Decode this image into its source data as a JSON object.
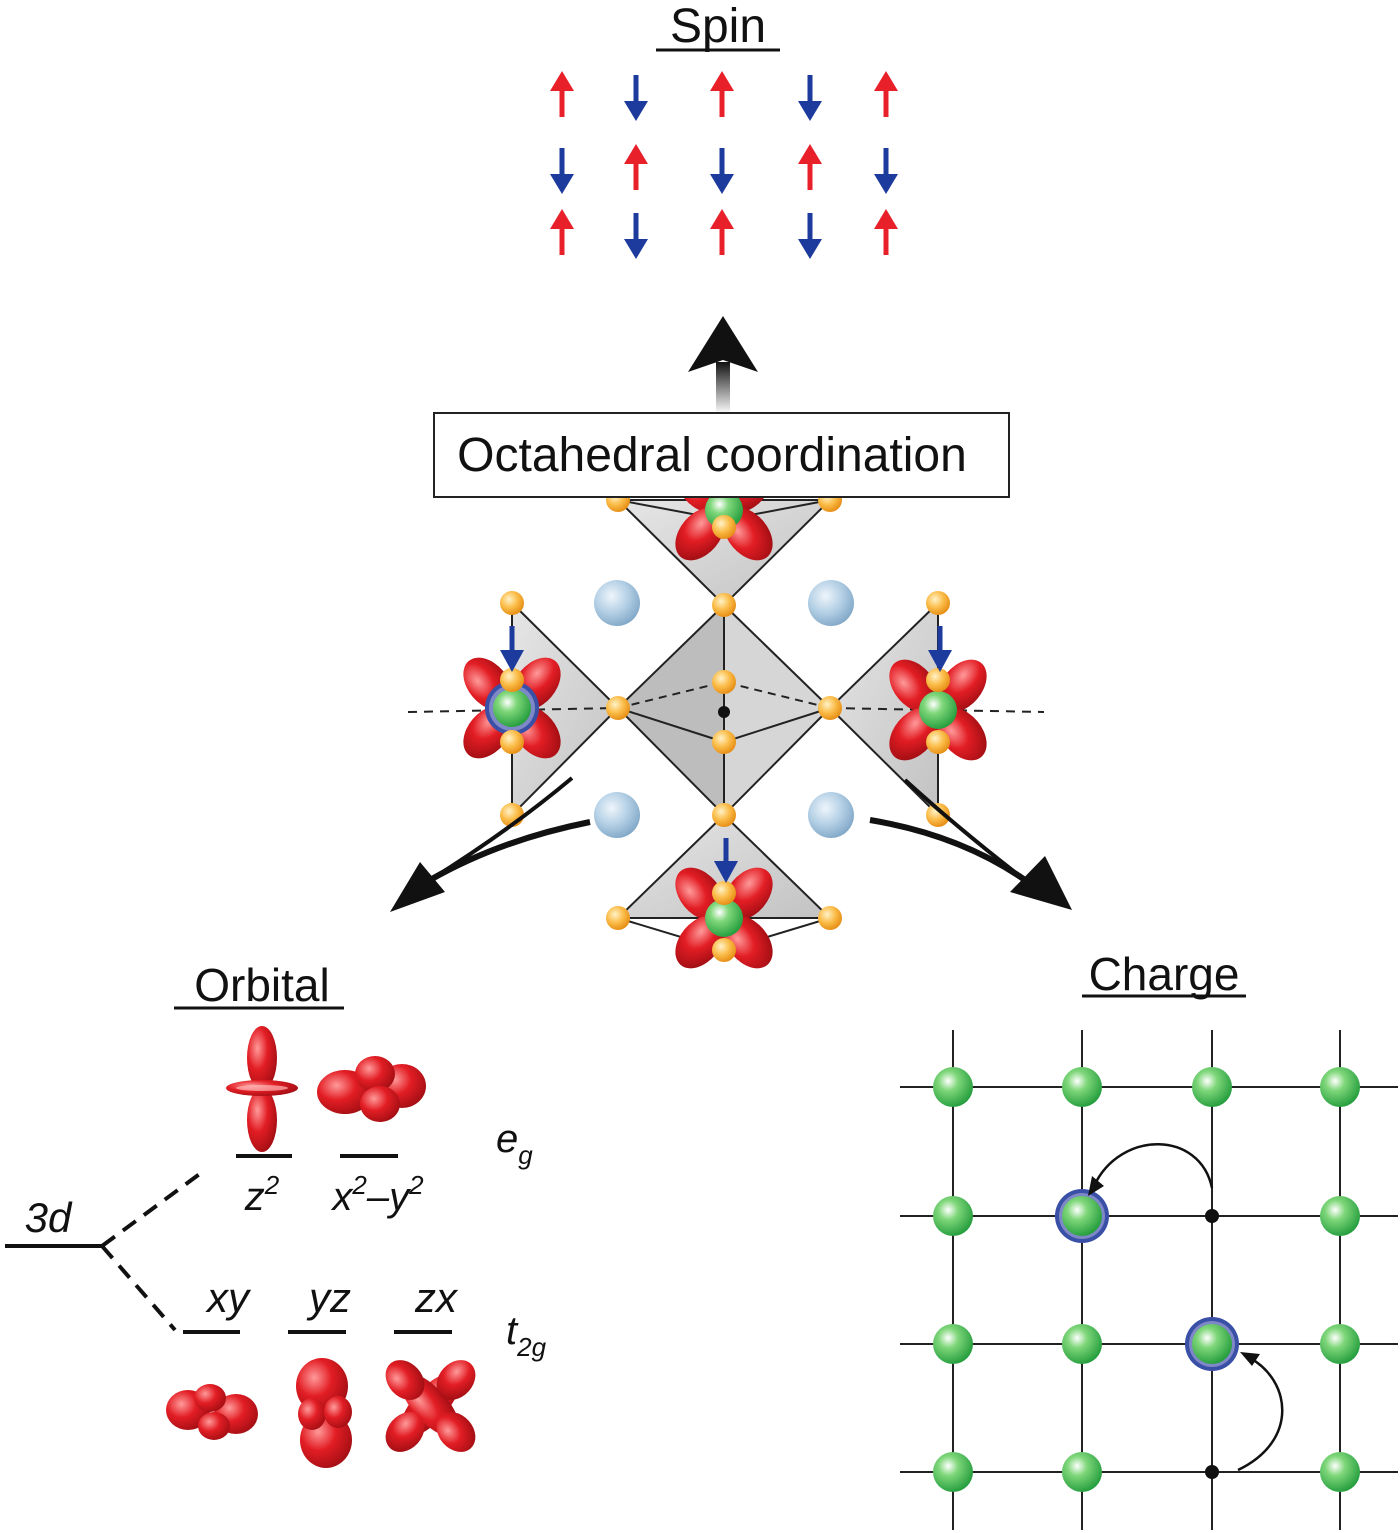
{
  "labels": {
    "spin": "Spin",
    "center": "Octahedral coordination",
    "orbital": "Orbital",
    "charge": "Charge",
    "level_3d": "3d",
    "eg_e": "e",
    "eg_sub": "g",
    "t2g_t": "t",
    "t2g_sub": "2g",
    "z2_base": "z",
    "z2_sup": "2",
    "x2y2_x": "x",
    "x2y2_sup1": "2",
    "x2y2_dash": "–y",
    "x2y2_sup2": "2",
    "xy": "xy",
    "yz": "yz",
    "zx": "zx"
  },
  "spin_grid": [
    [
      "up",
      "down",
      "up",
      "down",
      "up"
    ],
    [
      "down",
      "up",
      "down",
      "up",
      "down"
    ],
    [
      "up",
      "down",
      "up",
      "down",
      "up"
    ]
  ],
  "colors": {
    "spin_up": "#e8202a",
    "spin_down": "#1d3b9c",
    "orbital_red": "#d81920",
    "metal_green": "#2fae45",
    "oxygen_orange": "#f6a623",
    "cation_blue": "#a9c8e0",
    "polyhedron_gray": "#c8c8c8"
  }
}
